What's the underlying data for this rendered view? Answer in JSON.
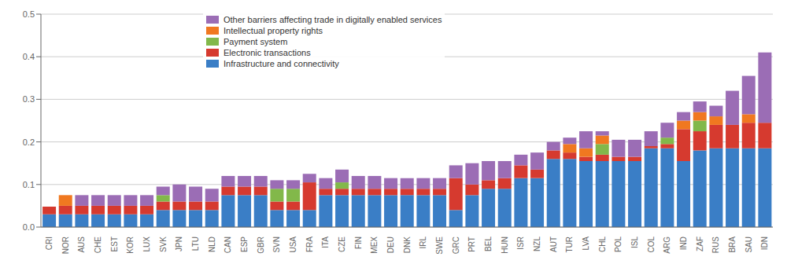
{
  "chart_data": {
    "type": "bar",
    "stacked": true,
    "grid": true,
    "legend": "upper left",
    "categories": [
      "CRI",
      "NOR",
      "AUS",
      "CHE",
      "EST",
      "KOR",
      "LUX",
      "SVK",
      "JPN",
      "LTU",
      "NLD",
      "CAN",
      "ESP",
      "GBR",
      "SVN",
      "USA",
      "FRA",
      "ITA",
      "CZE",
      "FIN",
      "MEX",
      "DEU",
      "DNK",
      "IRL",
      "SWE",
      "GRC",
      "PRT",
      "BEL",
      "HUN",
      "ISR",
      "NZL",
      "AUT",
      "TUR",
      "LVA",
      "CHL",
      "POL",
      "ISL",
      "COL",
      "ARG",
      "IND",
      "ZAF",
      "RUS",
      "BRA",
      "SAU",
      "IDN"
    ],
    "series": [
      {
        "name": "Infrastructure and connectivity",
        "color": "#3A7EC6",
        "values": [
          0.03,
          0.03,
          0.03,
          0.03,
          0.03,
          0.03,
          0.03,
          0.04,
          0.04,
          0.04,
          0.04,
          0.075,
          0.075,
          0.075,
          0.04,
          0.04,
          0.04,
          0.075,
          0.075,
          0.075,
          0.075,
          0.075,
          0.075,
          0.075,
          0.075,
          0.04,
          0.075,
          0.09,
          0.09,
          0.115,
          0.115,
          0.16,
          0.16,
          0.155,
          0.155,
          0.155,
          0.155,
          0.185,
          0.185,
          0.155,
          0.18,
          0.185,
          0.185,
          0.185,
          0.185
        ]
      },
      {
        "name": "Electronic transactions",
        "color": "#D63A2F",
        "values": [
          0.018,
          0.02,
          0.02,
          0.02,
          0.02,
          0.02,
          0.02,
          0.02,
          0.02,
          0.02,
          0.02,
          0.02,
          0.02,
          0.02,
          0.02,
          0.02,
          0.065,
          0.015,
          0.015,
          0.015,
          0.015,
          0.015,
          0.015,
          0.015,
          0.015,
          0.075,
          0.025,
          0.02,
          0.025,
          0.03,
          0.02,
          0.02,
          0.015,
          0.01,
          0.015,
          0.01,
          0.01,
          0.005,
          0.01,
          0.075,
          0.045,
          0.055,
          0.055,
          0.06,
          0.06
        ]
      },
      {
        "name": "Payment system",
        "color": "#82B84A",
        "values": [
          0.0,
          0.0,
          0.0,
          0.0,
          0.0,
          0.0,
          0.0,
          0.015,
          0.0,
          0.0,
          0.0,
          0.0,
          0.0,
          0.0,
          0.03,
          0.03,
          0.0,
          0.0,
          0.015,
          0.0,
          0.0,
          0.0,
          0.0,
          0.0,
          0.0,
          0.0,
          0.0,
          0.0,
          0.0,
          0.0,
          0.0,
          0.0,
          0.0,
          0.0,
          0.025,
          0.0,
          0.0,
          0.0,
          0.015,
          0.0,
          0.025,
          0.0,
          0.0,
          0.0,
          0.0
        ]
      },
      {
        "name": "Intellectual property rights",
        "color": "#F07820",
        "values": [
          0.0,
          0.025,
          0.0,
          0.0,
          0.0,
          0.0,
          0.0,
          0.0,
          0.0,
          0.0,
          0.0,
          0.0,
          0.0,
          0.0,
          0.0,
          0.0,
          0.0,
          0.0,
          0.0,
          0.0,
          0.0,
          0.0,
          0.0,
          0.0,
          0.0,
          0.0,
          0.0,
          0.0,
          0.0,
          0.0,
          0.0,
          0.0,
          0.02,
          0.02,
          0.02,
          0.0,
          0.0,
          0.0,
          0.0,
          0.02,
          0.02,
          0.02,
          0.0,
          0.02,
          0.0
        ]
      },
      {
        "name": "Other barriers affecting trade in digitally enabled services",
        "color": "#9B6DB5",
        "values": [
          0.0,
          0.0,
          0.025,
          0.025,
          0.025,
          0.025,
          0.025,
          0.02,
          0.04,
          0.035,
          0.03,
          0.025,
          0.025,
          0.025,
          0.02,
          0.02,
          0.02,
          0.025,
          0.03,
          0.03,
          0.03,
          0.025,
          0.025,
          0.025,
          0.025,
          0.03,
          0.05,
          0.045,
          0.04,
          0.025,
          0.04,
          0.02,
          0.015,
          0.04,
          0.01,
          0.04,
          0.04,
          0.035,
          0.035,
          0.02,
          0.025,
          0.025,
          0.08,
          0.09,
          0.165
        ]
      }
    ],
    "ylim": [
      0,
      0.5
    ],
    "yticks": [
      {
        "value": 0.0,
        "label": "0.0"
      },
      0.1,
      0.2,
      0.3,
      0.4,
      0.5
    ]
  }
}
